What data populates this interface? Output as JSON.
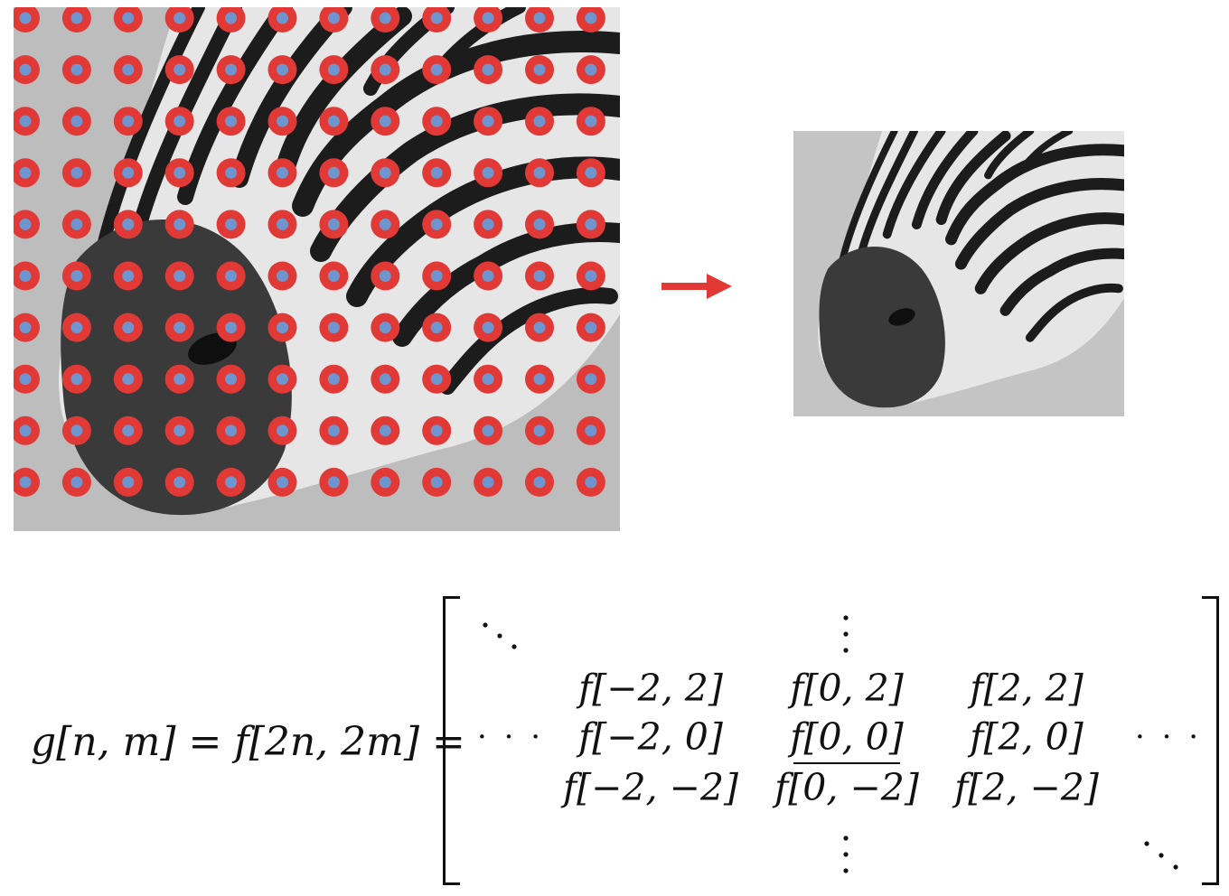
{
  "colors": {
    "dot_outer": "#e13a36",
    "dot_inner": "#6f95cf",
    "arrow": "#e13a36",
    "photo_bg": "#bdbdbd",
    "stripe": "#1c1c1c",
    "white_fur": "#ececec",
    "muzzle": "#3a3a3a"
  },
  "grid": {
    "cols": 12,
    "rows": 10
  },
  "icons": {
    "arrow": "right-arrow-icon"
  },
  "equation": {
    "lhs": "g[n, m] = f[2n, 2m] =",
    "left_dots": "· · ·",
    "right_dots": "· · ·",
    "matrix": [
      [
        "f[−2, 2]",
        "f[0, 2]",
        "f[2, 2]"
      ],
      [
        "f[−2, 0]",
        "f[0, 0]",
        "f[2, 0]"
      ],
      [
        "f[−2, −2]",
        "f[0, −2]",
        "f[2, −2]"
      ]
    ]
  }
}
